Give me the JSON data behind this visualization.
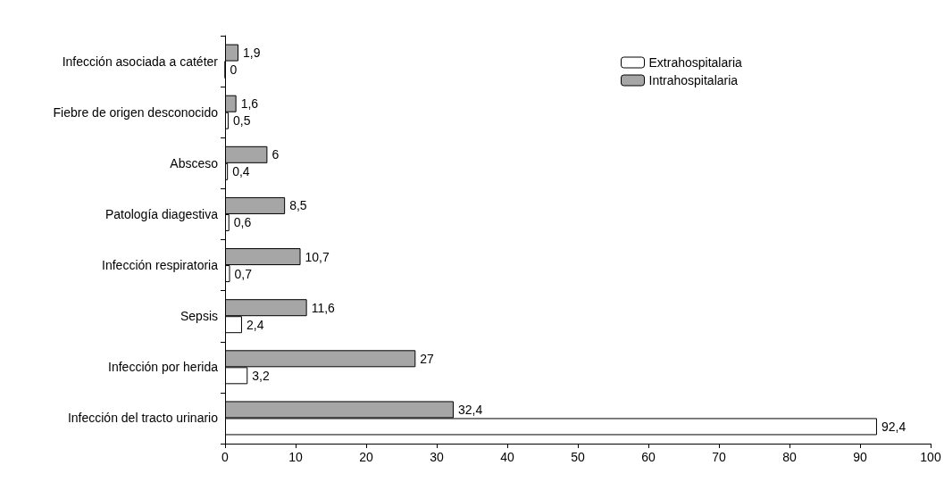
{
  "chart_data": {
    "type": "bar",
    "orientation": "horizontal",
    "categories": [
      "Infección asociada a catéter",
      "Fiebre de origen desconocido",
      "Absceso",
      "Patología diagestiva",
      "Infección respiratoria",
      "Sepsis",
      "Infección por herida",
      "Infección del tracto urinario"
    ],
    "series": [
      {
        "name": "Extrahospitalaria",
        "color": "#ffffff",
        "values": [
          0,
          0.5,
          0.4,
          0.6,
          0.7,
          2.4,
          3.2,
          92.4
        ],
        "value_labels": [
          "0",
          "0,5",
          "0,4",
          "0,6",
          "0,7",
          "2,4",
          "3,2",
          "92,4"
        ]
      },
      {
        "name": "Intrahospitalaria",
        "color": "#a6a6a6",
        "values": [
          1.9,
          1.6,
          6,
          8.5,
          10.7,
          11.6,
          27,
          32.4
        ],
        "value_labels": [
          "1,9",
          "1,6",
          "6",
          "8,5",
          "10,7",
          "11,6",
          "27",
          "32,4"
        ]
      }
    ],
    "xlim": [
      0,
      100
    ],
    "xticks": [
      0,
      10,
      20,
      30,
      40,
      50,
      60,
      70,
      80,
      90,
      100
    ],
    "grid": false,
    "legend": "top right"
  }
}
